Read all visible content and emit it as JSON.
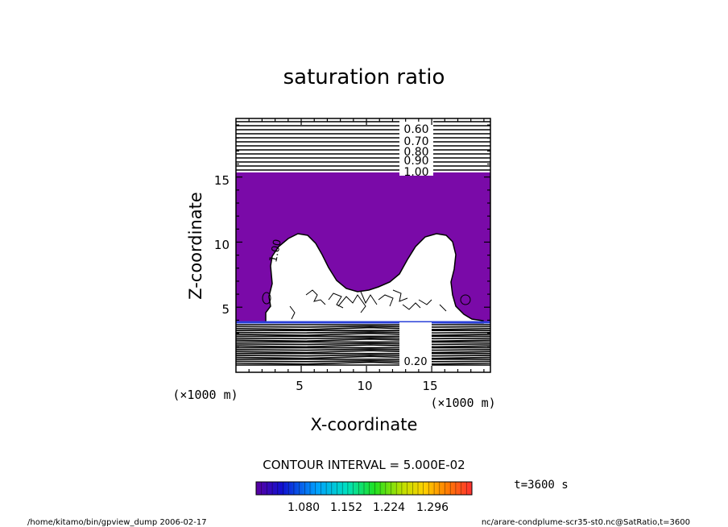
{
  "chart_data": {
    "type": "heatmap",
    "title": "saturation ratio",
    "xlabel": "X-coordinate",
    "ylabel": "Z-coordinate",
    "x_unit": "(×1000 m)",
    "z_unit": "(×1000 m)",
    "xlim": [
      0,
      19.5
    ],
    "ylim": [
      0,
      19.5
    ],
    "x_ticks": [
      5,
      10,
      15
    ],
    "y_ticks": [
      5,
      10,
      15
    ],
    "contour_interval_text": "CONTOUR INTERVAL = 5.000E-02",
    "upper_contour_labels": [
      "0.60",
      "0.70",
      "0.80",
      "0.90",
      "1.00"
    ],
    "lower_contour_labels": [
      "0.20"
    ],
    "plume_contour_label": "1.00",
    "shaded_region": {
      "description_value": ">1.0",
      "color": "#7a0aa8"
    },
    "colorbar": {
      "ticks": [
        "1.080",
        "1.152",
        "1.224",
        "1.296"
      ],
      "min": 1.044,
      "max": 1.332
    },
    "time_label": "t=3600 s"
  },
  "footer": {
    "left": "/home/kitamo/bin/gpview_dump  2006-02-17",
    "right": "nc/arare-condplume-scr35-st0.nc@SatRatio,t=3600"
  }
}
